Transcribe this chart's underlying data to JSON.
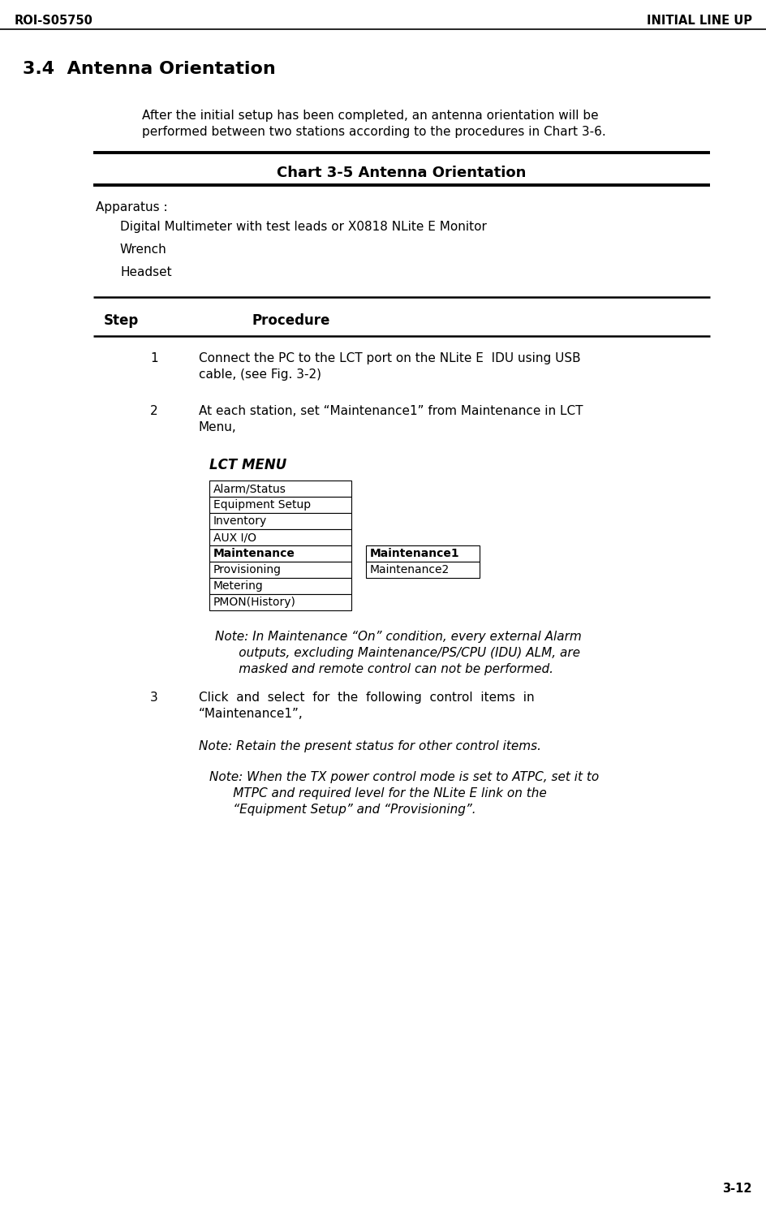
{
  "header_left": "ROI-S05750",
  "header_right": "INITIAL LINE UP",
  "footer_right": "3-12",
  "section_title": "3.4  Antenna Orientation",
  "intro_line1": "After the initial setup has been completed, an antenna orientation will be",
  "intro_line2": "performed between two stations according to the procedures in Chart 3-6.",
  "chart_title": "Chart 3-5 Antenna Orientation",
  "apparatus_label": "Apparatus :",
  "apparatus_items": [
    "Digital Multimeter with test leads or X0818 NLite E Monitor",
    "Wrench",
    "Headset"
  ],
  "step_col": "Step",
  "procedure_col": "Procedure",
  "step1_num": "1",
  "step1_line1": "Connect the PC to the LCT port on the NLite E  IDU using USB",
  "step1_line2": "cable, (see Fig. 3-2)",
  "step2_num": "2",
  "step2_line1": "At each station, set “Maintenance1” from Maintenance in LCT",
  "step2_line2": "Menu,",
  "lct_menu_label": "LCT MENU",
  "lct_menu_items": [
    "Alarm/Status",
    "Equipment Setup",
    "Inventory",
    "AUX I/O",
    "Maintenance",
    "Provisioning",
    "Metering",
    "PMON(History)"
  ],
  "maintenance_bold_index": 4,
  "submenu_items": [
    "Maintenance1",
    "Maintenance2"
  ],
  "note2_line1": "Note: In Maintenance “On” condition, every external Alarm",
  "note2_line2": "      outputs, excluding Maintenance/PS/CPU (IDU) ALM, are",
  "note2_line3": "      masked and remote control can not be performed.",
  "step3_num": "3",
  "step3_line1": "Click  and  select  for  the  following  control  items  in",
  "step3_line2": "“Maintenance1”,",
  "note3a": "Note: Retain the present status for other control items.",
  "note3b_line1": "Note: When the TX power control mode is set to ATPC, set it to",
  "note3b_line2": "      MTPC and required level for the NLite E link on the",
  "note3b_line3": "      “Equipment Setup” and “Provisioning”.",
  "bg_color": "#ffffff",
  "header_fontsize": 10.5,
  "section_fontsize": 16,
  "body_fontsize": 11,
  "chart_title_fontsize": 13,
  "step_header_fontsize": 12,
  "lct_label_fontsize": 12,
  "menu_fontsize": 10,
  "note_fontsize": 11
}
